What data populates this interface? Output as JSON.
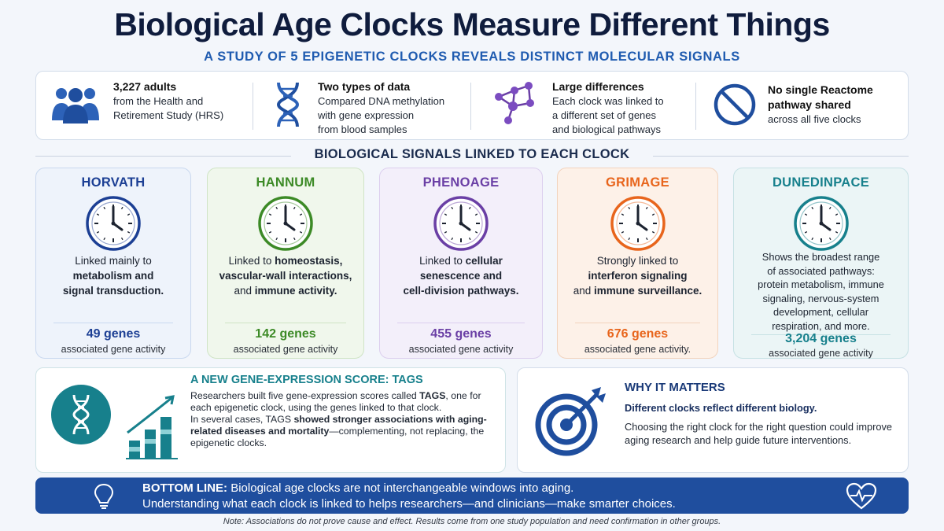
{
  "title": "Biological Age Clocks Measure Different Things",
  "subtitle": "A STUDY OF 5 EPIGENETIC CLOCKS REVEALS DISTINCT MOLECULAR SIGNALS",
  "facts": [
    {
      "icon": "people-group-icon",
      "head": "3,227 adults",
      "lines": [
        "from the Health and",
        "Retirement Study (HRS)"
      ]
    },
    {
      "icon": "dna-helix-icon",
      "head": "Two types of data",
      "lines": [
        "Compared DNA methylation",
        "with gene expression",
        "from blood samples"
      ]
    },
    {
      "icon": "network-nodes-icon",
      "head": "Large differences",
      "lines": [
        "Each clock was linked to",
        "a different set of genes",
        "and biological pathways"
      ]
    },
    {
      "icon": "prohibited-icon",
      "head_lines": [
        "No single Reactome",
        "pathway shared"
      ],
      "lines": [
        "across all five clocks"
      ]
    }
  ],
  "section_heading": "BIOLOGICAL SIGNALS LINKED TO EACH CLOCK",
  "clocks": [
    {
      "name": "HORVATH",
      "color": "#1c3f94",
      "bg": "#eef3fb",
      "border": "#c9d8ef",
      "desc_html": "Linked mainly to<br><b>metabolism and<br>signal transduction.</b>",
      "count": "49 genes",
      "count_label": "associated gene activity"
    },
    {
      "name": "HANNUM",
      "color": "#3c8a26",
      "bg": "#f0f7ec",
      "border": "#cfe4c5",
      "desc_html": "Linked to <b>homeostasis,<br>vascular-wall interactions,</b><br>and <b>immune activity.</b>",
      "count": "142 genes",
      "count_label": "associated gene activity"
    },
    {
      "name": "PHENOAGE",
      "color": "#6a3fa5",
      "bg": "#f3effa",
      "border": "#dccfee",
      "desc_html": "Linked to <b>cellular<br>senescence and<br>cell-division pathways.</b>",
      "count": "455 genes",
      "count_label": "associated gene activity"
    },
    {
      "name": "GRIMAGE",
      "color": "#e8651c",
      "bg": "#fdf1e8",
      "border": "#f2d3bd",
      "desc_html": "Strongly linked to<br><b>interferon signaling</b><br>and <b>immune surveillance.</b>",
      "count": "676 genes",
      "count_label": "associated gene activity."
    },
    {
      "name": "DUNEDINPACE",
      "color": "#17808c",
      "bg": "#ebf5f6",
      "border": "#c6e1e4",
      "desc_html": "Shows the broadest range<br>of associated pathways:<br>protein metabolism, immune<br>signaling, nervous-system<br>development, cellular<br>respiration, and more.",
      "count": "3,204 genes",
      "count_label": "associated gene activity"
    }
  ],
  "tags": {
    "heading": "A NEW GENE-EXPRESSION SCORE: TAGS",
    "body_html": "Researchers built five gene-expression scores called <b>TAGS</b>, one for each epigenetic clock, using the genes linked to that clock.<br>In several cases, TAGS <b>showed stronger associations with aging-related diseases and mortality</b>—complementing, not replacing, the epigenetic clocks."
  },
  "why": {
    "heading": "WHY IT MATTERS",
    "lead": "Different clocks reflect different biology.",
    "body": "Choosing the right clock for the right question could improve aging research and help guide future interventions."
  },
  "bottom_line": {
    "label": "BOTTOM LINE:",
    "line1": "Biological age clocks are not interchangeable windows into aging.",
    "line2": "Understanding what each clock is linked to helps researchers—and clinicians—make smarter choices."
  },
  "note": "Note: Associations do not prove cause and effect. Results come from one study population and need confirmation in other groups."
}
